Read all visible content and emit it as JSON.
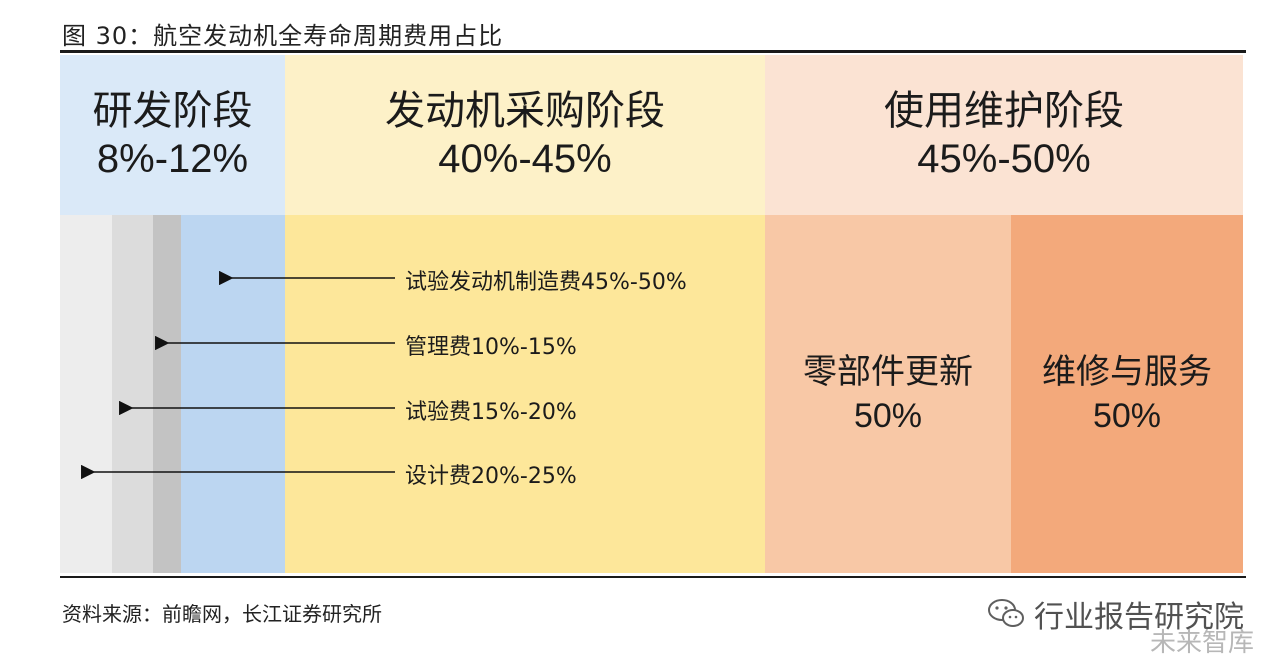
{
  "figure": {
    "title": "图 30：航空发动机全寿命周期费用占比",
    "source": "资料来源：前瞻网，长江证券研究所"
  },
  "stages": {
    "rd": {
      "name": "研发阶段",
      "pct": "8%-12%"
    },
    "procurement": {
      "name": "发动机采购阶段",
      "pct": "40%-45%"
    },
    "maintenance": {
      "name": "使用维护阶段",
      "pct": "45%-50%"
    }
  },
  "rd_breakdown": [
    {
      "label": "试验发动机制造费45%-50%"
    },
    {
      "label": "管理费10%-15%"
    },
    {
      "label": "试验费15%-20%"
    },
    {
      "label": "设计费20%-25%"
    }
  ],
  "maintenance_breakdown": {
    "parts": {
      "name": "零部件更新",
      "pct": "50%"
    },
    "service": {
      "name": "维修与服务",
      "pct": "50%"
    }
  },
  "watermark": {
    "main": "行业报告研究院",
    "secondary": "未来智库"
  },
  "colors": {
    "rd_header": "#dae9f8",
    "rd_strip1": "#ededed",
    "rd_strip2": "#dcdcdc",
    "rd_strip3": "#c3c3c3",
    "rd_strip4": "#bcd6f1",
    "procurement_header": "#fdf1c8",
    "procurement_body": "#fde79a",
    "maintenance_header": "#fbe3d3",
    "parts_body": "#f8c8a6",
    "service_body": "#f3a97b"
  }
}
